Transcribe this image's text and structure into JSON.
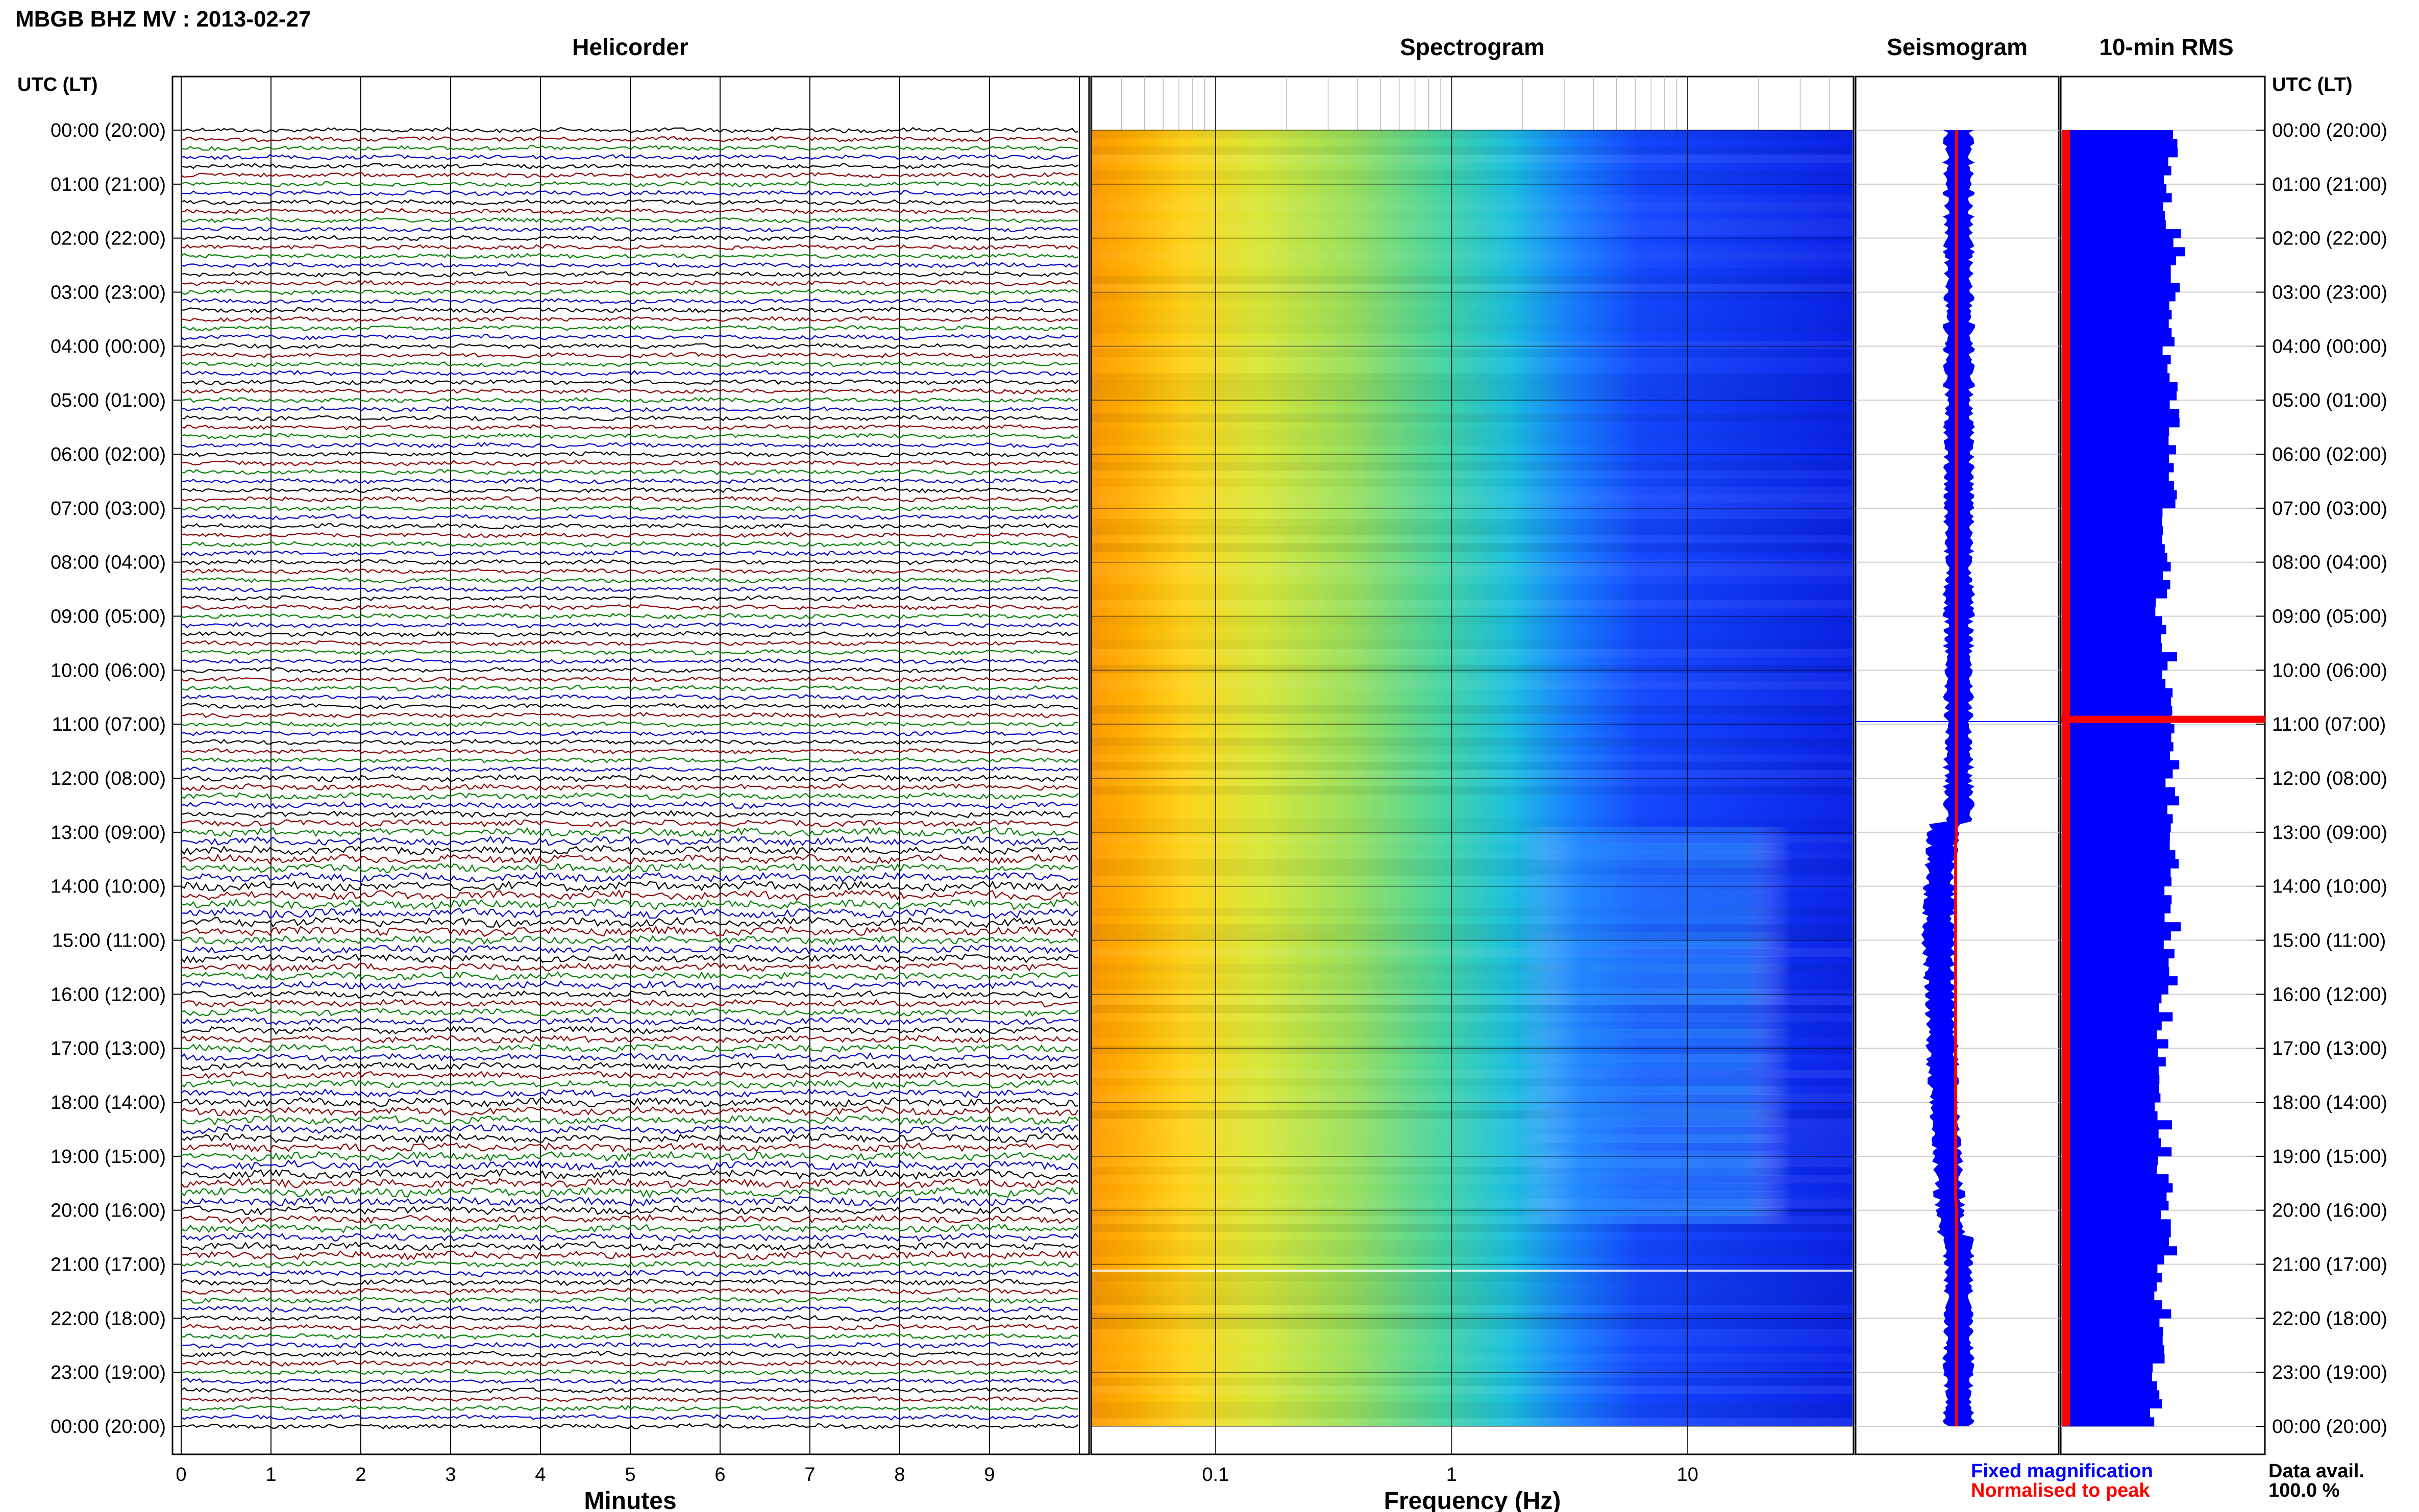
{
  "title": "MBGB BHZ MV : 2013-02-27",
  "panels": {
    "helicorder": "Helicorder",
    "spectrogram": "Spectrogram",
    "seismogram": "Seismogram",
    "rms": "10-min RMS"
  },
  "left_axis_label": "UTC (LT)",
  "right_axis_label": "UTC (LT)",
  "time_labels": [
    "00:00 (20:00)",
    "01:00 (21:00)",
    "02:00 (22:00)",
    "03:00 (23:00)",
    "04:00 (00:00)",
    "05:00 (01:00)",
    "06:00 (02:00)",
    "07:00 (03:00)",
    "08:00 (04:00)",
    "09:00 (05:00)",
    "10:00 (06:00)",
    "11:00 (07:00)",
    "12:00 (08:00)",
    "13:00 (09:00)",
    "14:00 (10:00)",
    "15:00 (11:00)",
    "16:00 (12:00)",
    "17:00 (13:00)",
    "18:00 (14:00)",
    "19:00 (15:00)",
    "20:00 (16:00)",
    "21:00 (17:00)",
    "22:00 (18:00)",
    "23:00 (19:00)",
    "00:00 (20:00)"
  ],
  "minutes_ticks": [
    "0",
    "1",
    "2",
    "3",
    "4",
    "5",
    "6",
    "7",
    "8",
    "9"
  ],
  "minutes_label": "Minutes",
  "frequency_ticks": [
    "0.1",
    "1",
    "10"
  ],
  "frequency_label": "Frequency (Hz)",
  "legend": {
    "fixed": "Fixed magnification",
    "normalised": "Normalised to peak",
    "fixed_color": "#0000ff",
    "normalised_color": "#ff0000"
  },
  "data_avail": {
    "label": "Data avail.",
    "value": "100.0 %"
  },
  "colors": {
    "trace_cycle": [
      "#000000",
      "#8b0000",
      "#008000",
      "#0000cc"
    ],
    "rms_bar": "#0000ff",
    "rms_marker": "#ff0000",
    "spectrogram_low": "#0000ff",
    "spectrogram_high": "#ff8c00"
  },
  "chart_data": [
    {
      "type": "line",
      "panel": "Helicorder",
      "x": {
        "label": "Minutes",
        "range": [
          0,
          10
        ]
      },
      "y": {
        "label": "UTC (LT)",
        "range": [
          "00:00",
          "24:00"
        ]
      },
      "rows_per_hour": 6,
      "activity_profile_hours": [
        0,
        1,
        2,
        3,
        4,
        5,
        6,
        7,
        8,
        9,
        10,
        11,
        12,
        13,
        14,
        15,
        16,
        17,
        18,
        19,
        20,
        21,
        22,
        23
      ],
      "relative_amplitude": [
        0.9,
        0.9,
        0.9,
        0.9,
        0.9,
        0.9,
        0.9,
        0.9,
        0.9,
        0.9,
        0.9,
        0.9,
        1.2,
        1.6,
        1.8,
        1.5,
        1.3,
        1.4,
        1.6,
        1.7,
        1.5,
        1.1,
        1.0,
        0.9
      ]
    },
    {
      "type": "heatmap",
      "panel": "Spectrogram",
      "x": {
        "label": "Frequency (Hz)",
        "scale": "log",
        "range": [
          0.03,
          50
        ]
      },
      "y": {
        "range": [
          "00:00",
          "24:00"
        ]
      }
    },
    {
      "type": "line",
      "panel": "Seismogram",
      "series": [
        {
          "name": "Fixed magnification",
          "color": "#0000ff"
        },
        {
          "name": "Normalised to peak",
          "color": "#ff0000"
        }
      ],
      "fixed_envelope_by_hour": [
        0.1,
        0.12,
        0.14,
        0.22,
        0.2,
        0.22,
        0.22,
        0.2,
        0.2,
        0.16,
        0.12,
        0.1,
        0.08,
        0.34,
        0.42,
        0.44,
        0.4,
        0.36,
        0.32,
        0.24,
        0.18,
        0.12,
        0.1,
        0.08
      ],
      "event_hour": 10.95
    },
    {
      "type": "bar",
      "panel": "10-min RMS",
      "orientation": "horizontal",
      "rms_relative_by_hour": [
        0.7,
        0.72,
        0.75,
        0.72,
        0.7,
        0.72,
        0.7,
        0.68,
        0.66,
        0.7,
        0.68,
        1.0,
        0.72,
        0.74,
        0.72,
        0.7,
        0.68,
        0.66,
        0.66,
        0.68,
        0.7,
        0.66,
        0.64,
        0.62
      ],
      "peak_hour": 10.9
    }
  ]
}
